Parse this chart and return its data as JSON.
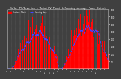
{
  "title": "Solar PV/Inverter - Total PV Panel & Running Average Power Output",
  "background_color": "#404040",
  "plot_bg_color": "#404040",
  "bar_color": "#ff0000",
  "avg_line_color": "#4444ff",
  "grid_color": "#ffffff",
  "text_color": "#ffffff",
  "peak_watts": 3800,
  "y_max": 4000,
  "y_ticks_right": [
    500,
    1000,
    1500,
    2000,
    2500,
    3000,
    3500,
    4000
  ],
  "n_years": 2,
  "n_points": 1500
}
